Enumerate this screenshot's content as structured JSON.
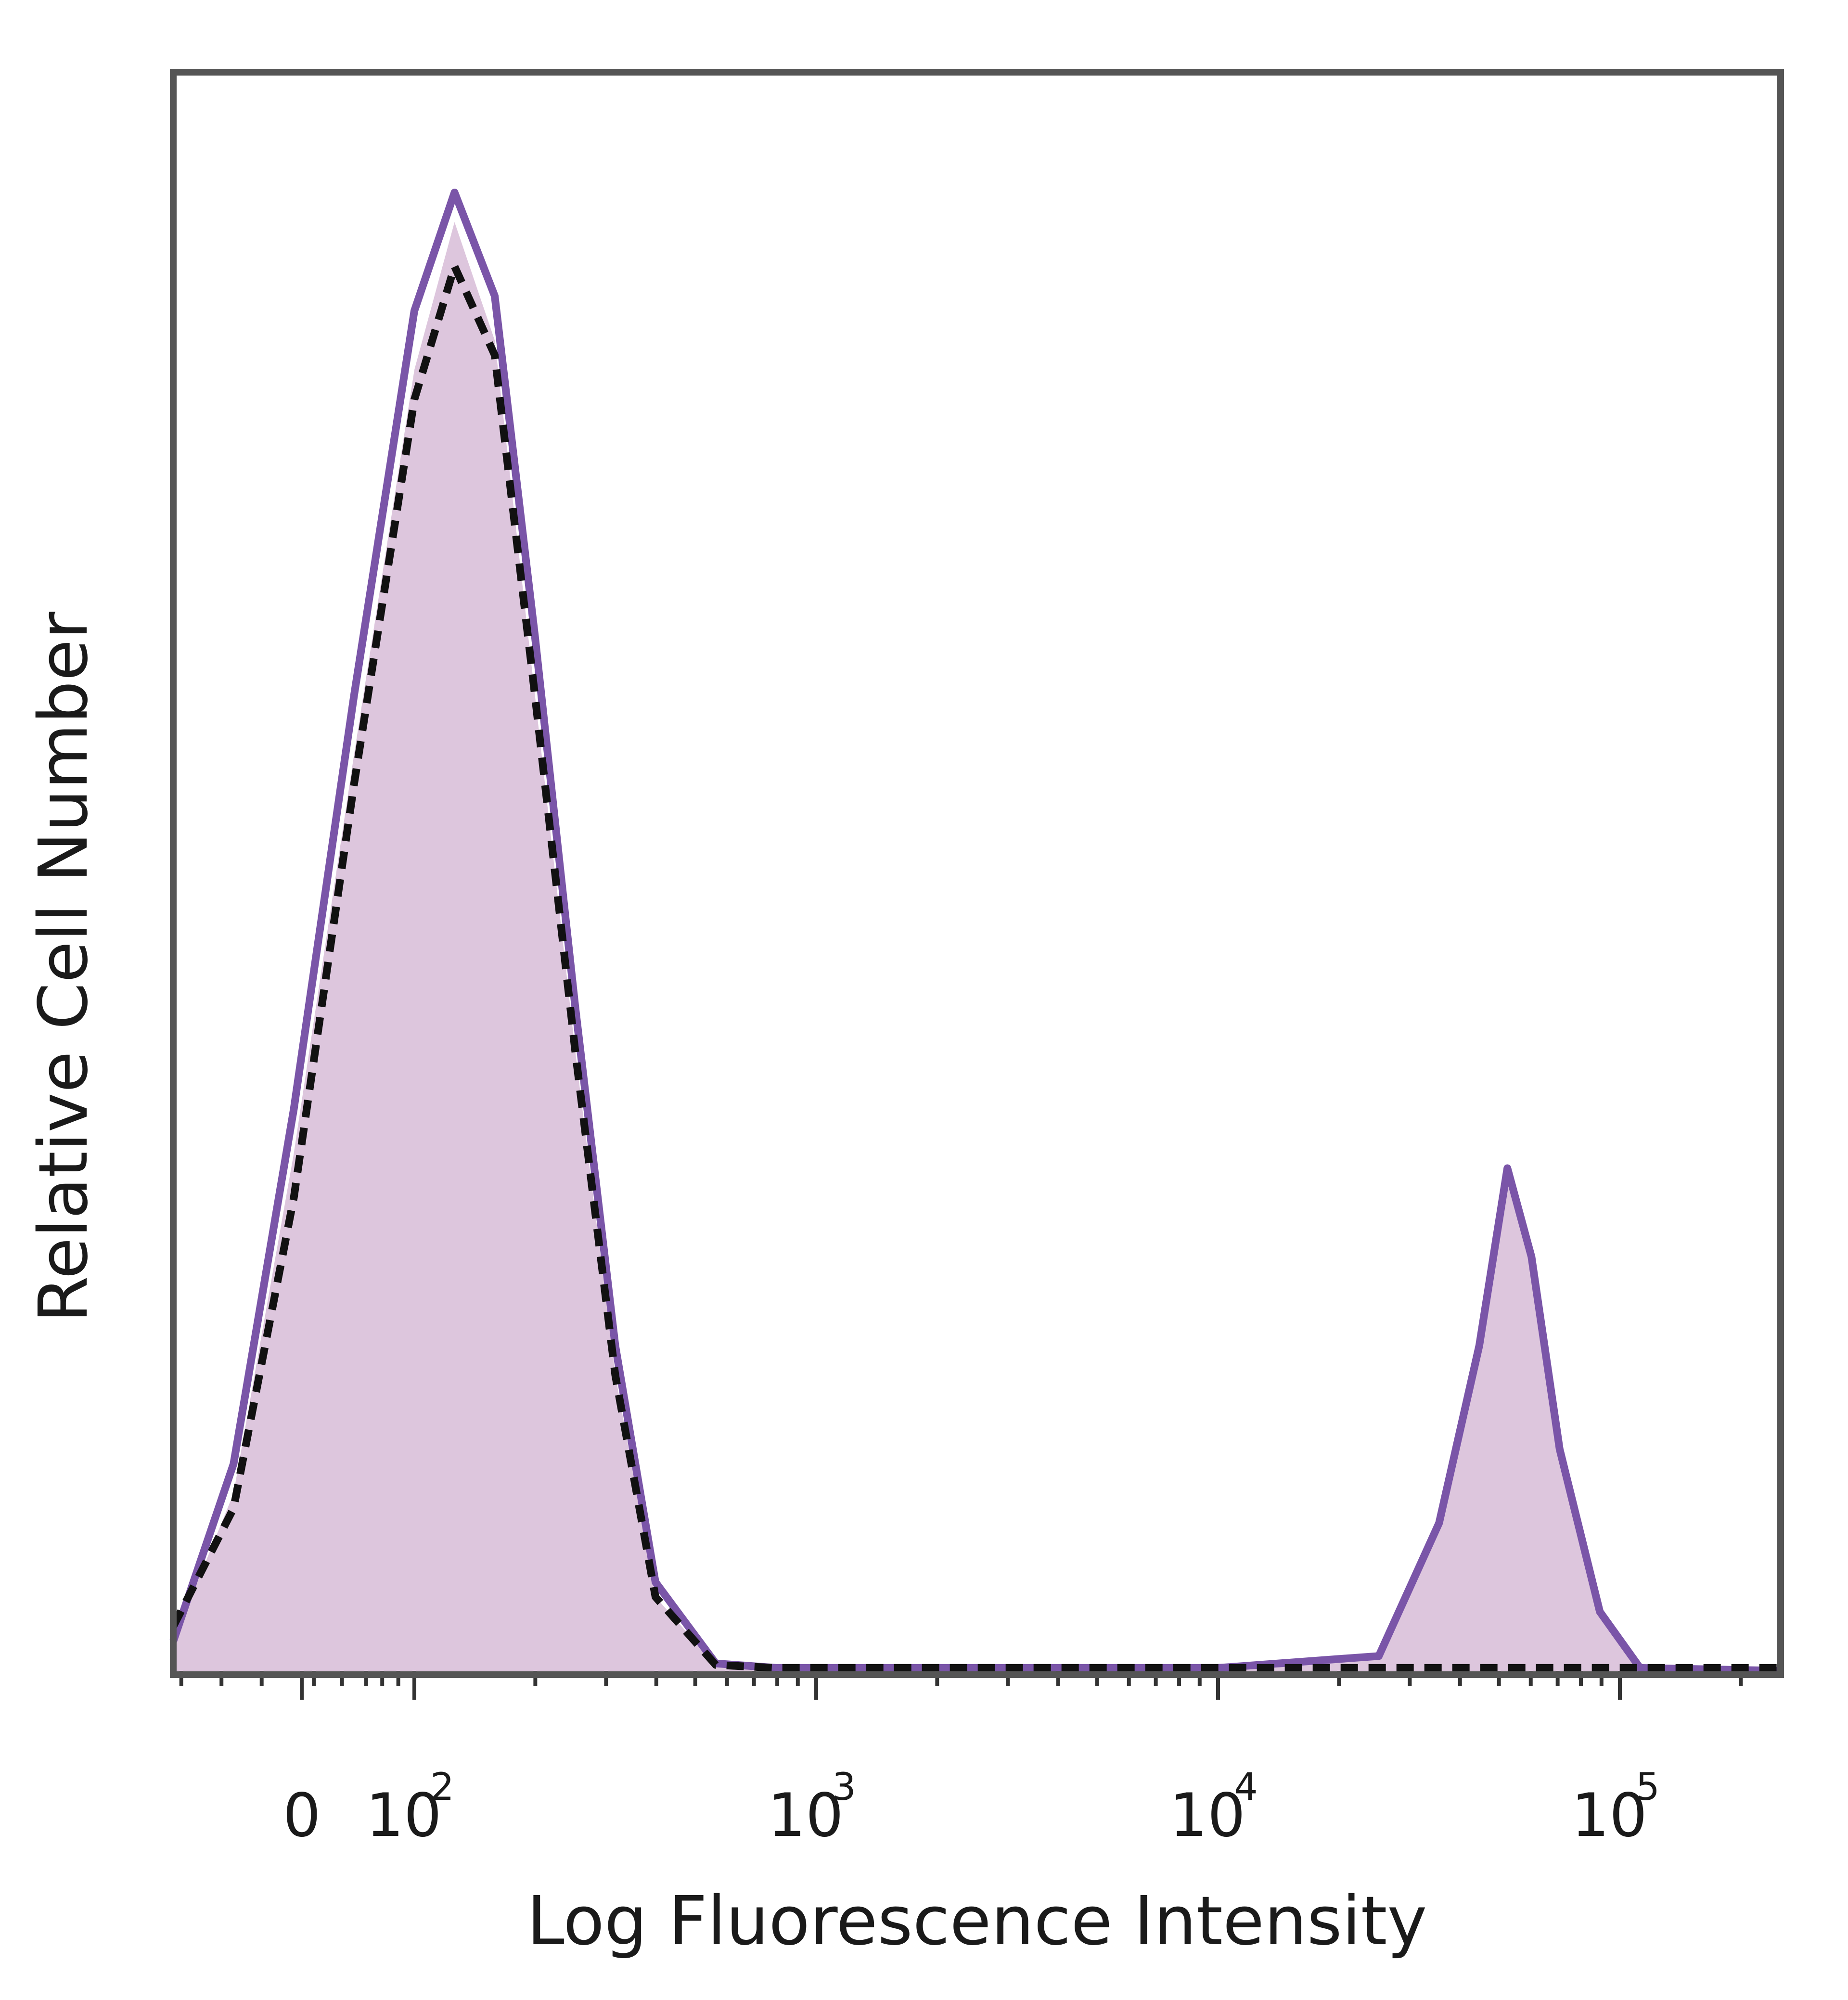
{
  "chart_data": {
    "type": "area",
    "title": "",
    "xlabel": "Log Fluorescence Intensity",
    "ylabel": "Relative Cell Number",
    "x_scale": "biexponential (log with linear region around 0)",
    "x_ticks": [
      {
        "base": "0",
        "exp": ""
      },
      {
        "base": "10",
        "exp": "2"
      },
      {
        "base": "10",
        "exp": "3"
      },
      {
        "base": "10",
        "exp": "4"
      },
      {
        "base": "10",
        "exp": "5"
      }
    ],
    "y_ticks": [],
    "grid": false,
    "legend": "none",
    "x_range_log10": [
      1.4,
      5.4
    ],
    "y_range": [
      0,
      100
    ],
    "series": [
      {
        "style": "filled-purple",
        "x_log10": [
          1.4,
          1.55,
          1.7,
          1.85,
          2.0,
          2.1,
          2.2,
          2.3,
          2.4,
          2.5,
          2.6,
          2.75,
          2.9,
          3.0,
          3.5,
          4.0,
          4.4,
          4.55,
          4.65,
          4.72,
          4.78,
          4.85,
          4.95,
          5.05,
          5.4
        ],
        "y": [
          2,
          12,
          35,
          62,
          88,
          98,
          90,
          66,
          42,
          20,
          5,
          0.4,
          0.2,
          0.2,
          0.2,
          0.2,
          1,
          10,
          22,
          33,
          27,
          14,
          4,
          0.2,
          0
        ]
      },
      {
        "style": "outline-purple",
        "x_log10": [
          1.4,
          1.55,
          1.7,
          1.85,
          2.0,
          2.1,
          2.2,
          2.3,
          2.4,
          2.5,
          2.6,
          2.75,
          2.9,
          3.0,
          3.5,
          4.0,
          4.4,
          4.55,
          4.65,
          4.72,
          4.78,
          4.85,
          4.95,
          5.05,
          5.4
        ],
        "y": [
          2,
          14,
          38,
          66,
          92,
          100,
          93,
          70,
          45,
          22,
          6,
          0.5,
          0.2,
          0.2,
          0.2,
          0.2,
          1,
          10,
          22,
          34,
          28,
          15,
          4,
          0.2,
          0
        ]
      },
      {
        "style": "dashed-black",
        "x_log10": [
          1.4,
          1.55,
          1.7,
          1.85,
          2.0,
          2.1,
          2.2,
          2.3,
          2.4,
          2.5,
          2.6,
          2.75,
          2.9,
          3.0,
          3.5,
          4.0,
          4.4,
          4.6,
          4.8,
          5.0,
          5.4
        ],
        "y": [
          3,
          11,
          32,
          60,
          86,
          95,
          89,
          66,
          42,
          20,
          5,
          0.4,
          0.2,
          0.2,
          0.2,
          0.2,
          0.2,
          0.2,
          0.2,
          0.2,
          0.2
        ]
      }
    ],
    "colors": {
      "fill": "#ddc6dd",
      "purple_line": "#7a55a8",
      "dashed_line": "#111111",
      "frame": "#555555",
      "background": "#ffffff"
    }
  }
}
